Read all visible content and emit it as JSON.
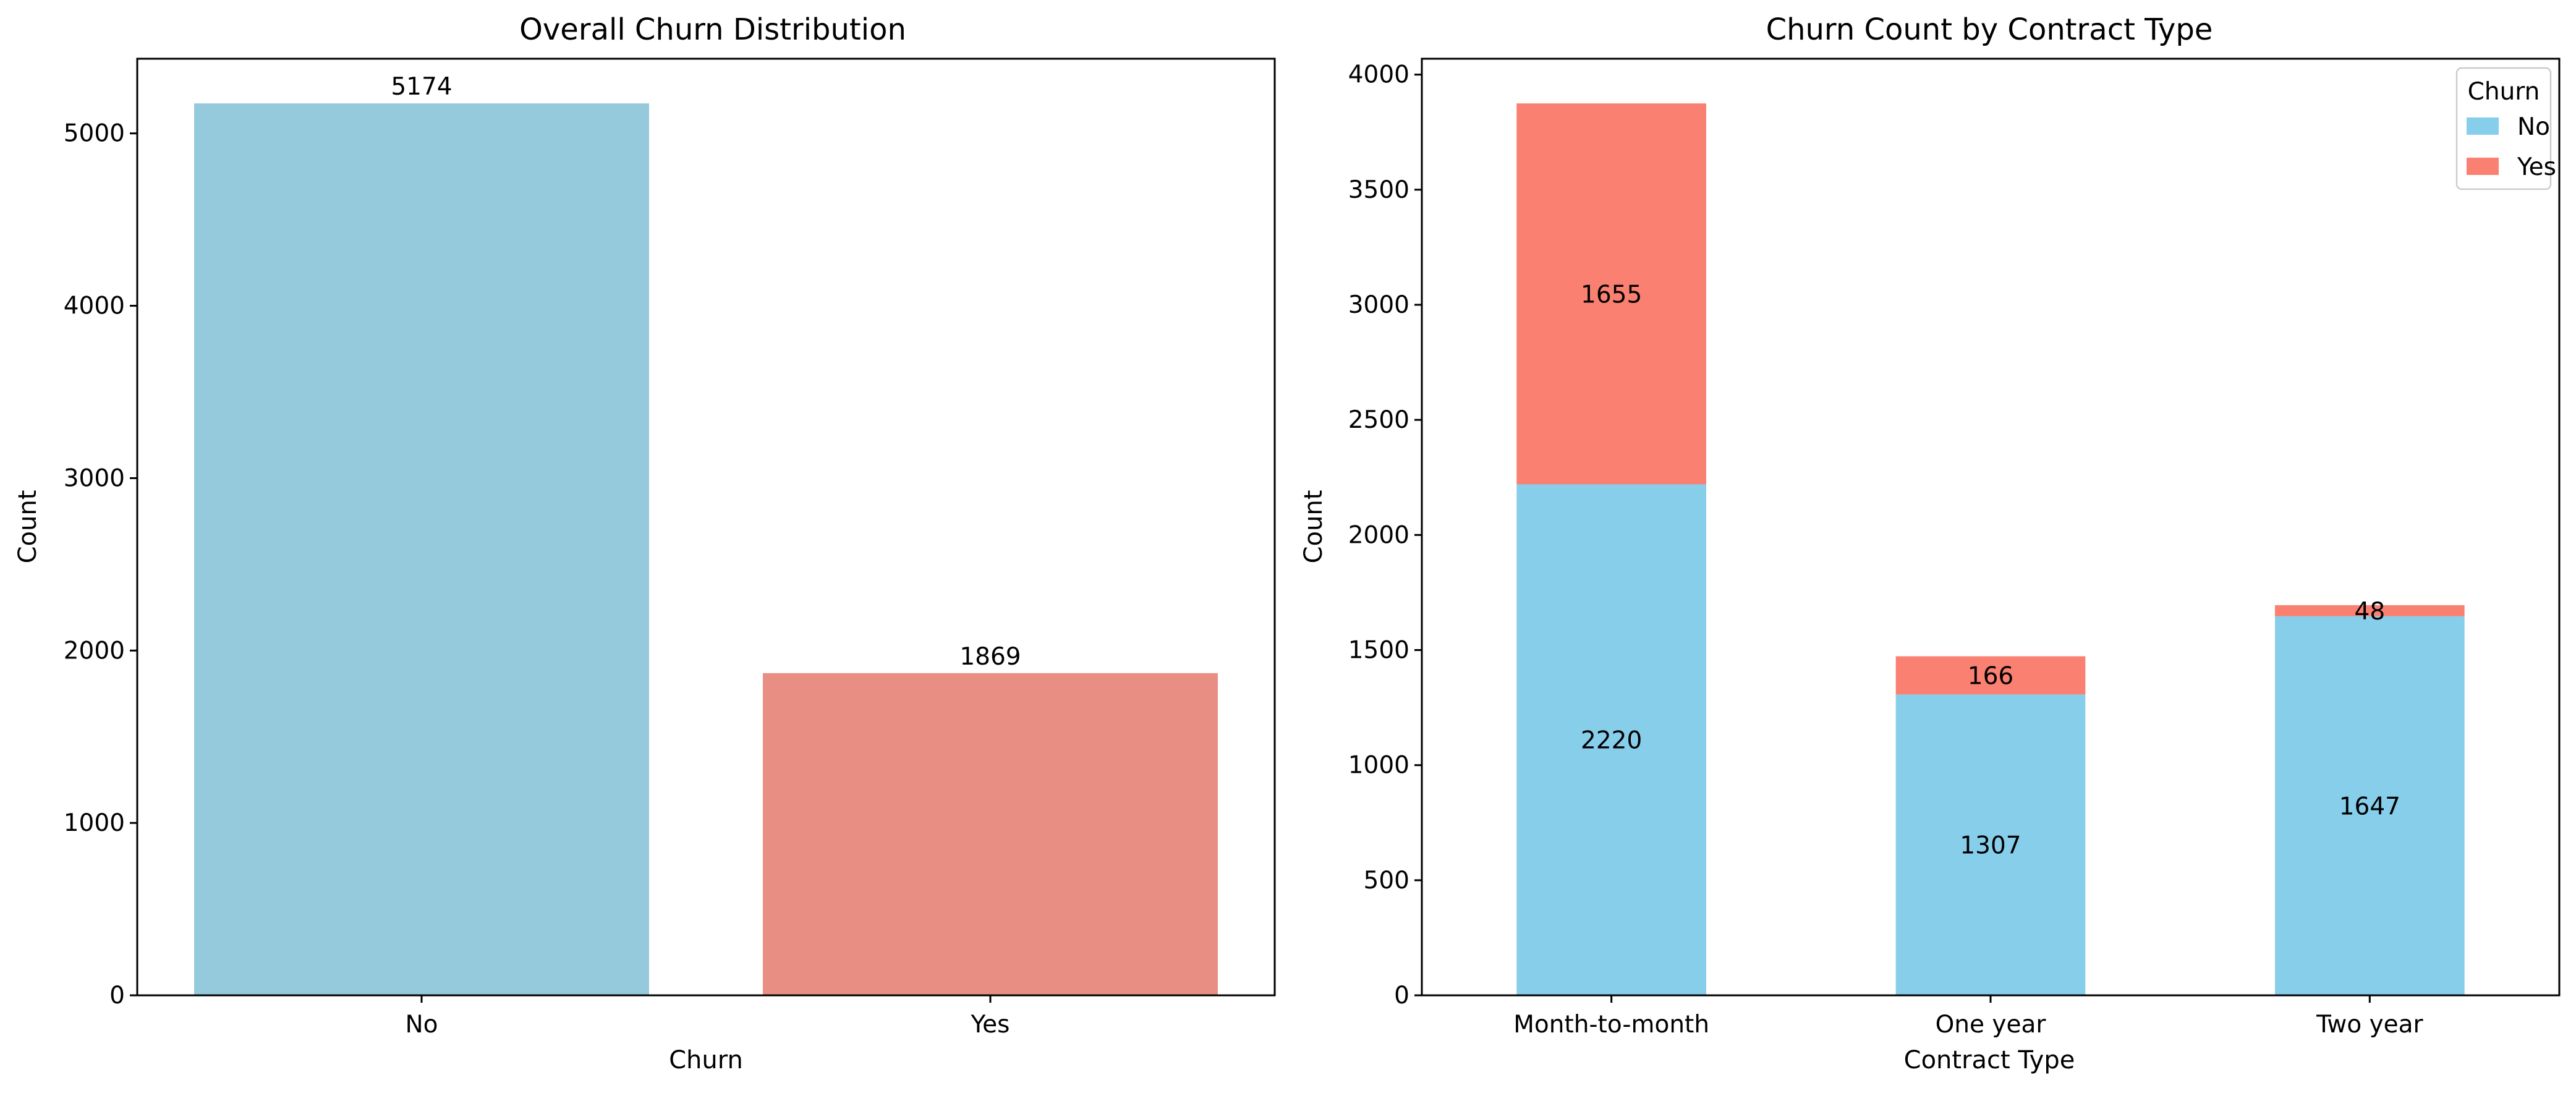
{
  "chart_data": [
    {
      "type": "bar",
      "title": "Overall Churn Distribution",
      "xlabel": "Churn",
      "ylabel": "Count",
      "categories": [
        "No",
        "Yes"
      ],
      "values": [
        5174,
        1869
      ],
      "colors": [
        "#95c9dc",
        "#e88e83"
      ],
      "ylim": [
        0,
        5433
      ],
      "yticks": [
        0,
        1000,
        2000,
        3000,
        4000,
        5000
      ],
      "data_labels": [
        "5174",
        "1869"
      ],
      "grid": false,
      "legend": "none"
    },
    {
      "type": "bar",
      "stacked": true,
      "title": "Churn Count by Contract Type",
      "xlabel": "Contract Type",
      "ylabel": "Count",
      "categories": [
        "Month-to-month",
        "One year",
        "Two year"
      ],
      "series": [
        {
          "name": "No",
          "values": [
            2220,
            1307,
            1647
          ],
          "color": "#87ceeb"
        },
        {
          "name": "Yes",
          "values": [
            1655,
            166,
            48
          ],
          "color": "#fa8072"
        }
      ],
      "ylim": [
        0,
        4069
      ],
      "yticks": [
        0,
        500,
        1000,
        1500,
        2000,
        2500,
        3000,
        3500,
        4000
      ],
      "legend_title": "Churn",
      "legend": "top-right",
      "grid": false
    }
  ]
}
